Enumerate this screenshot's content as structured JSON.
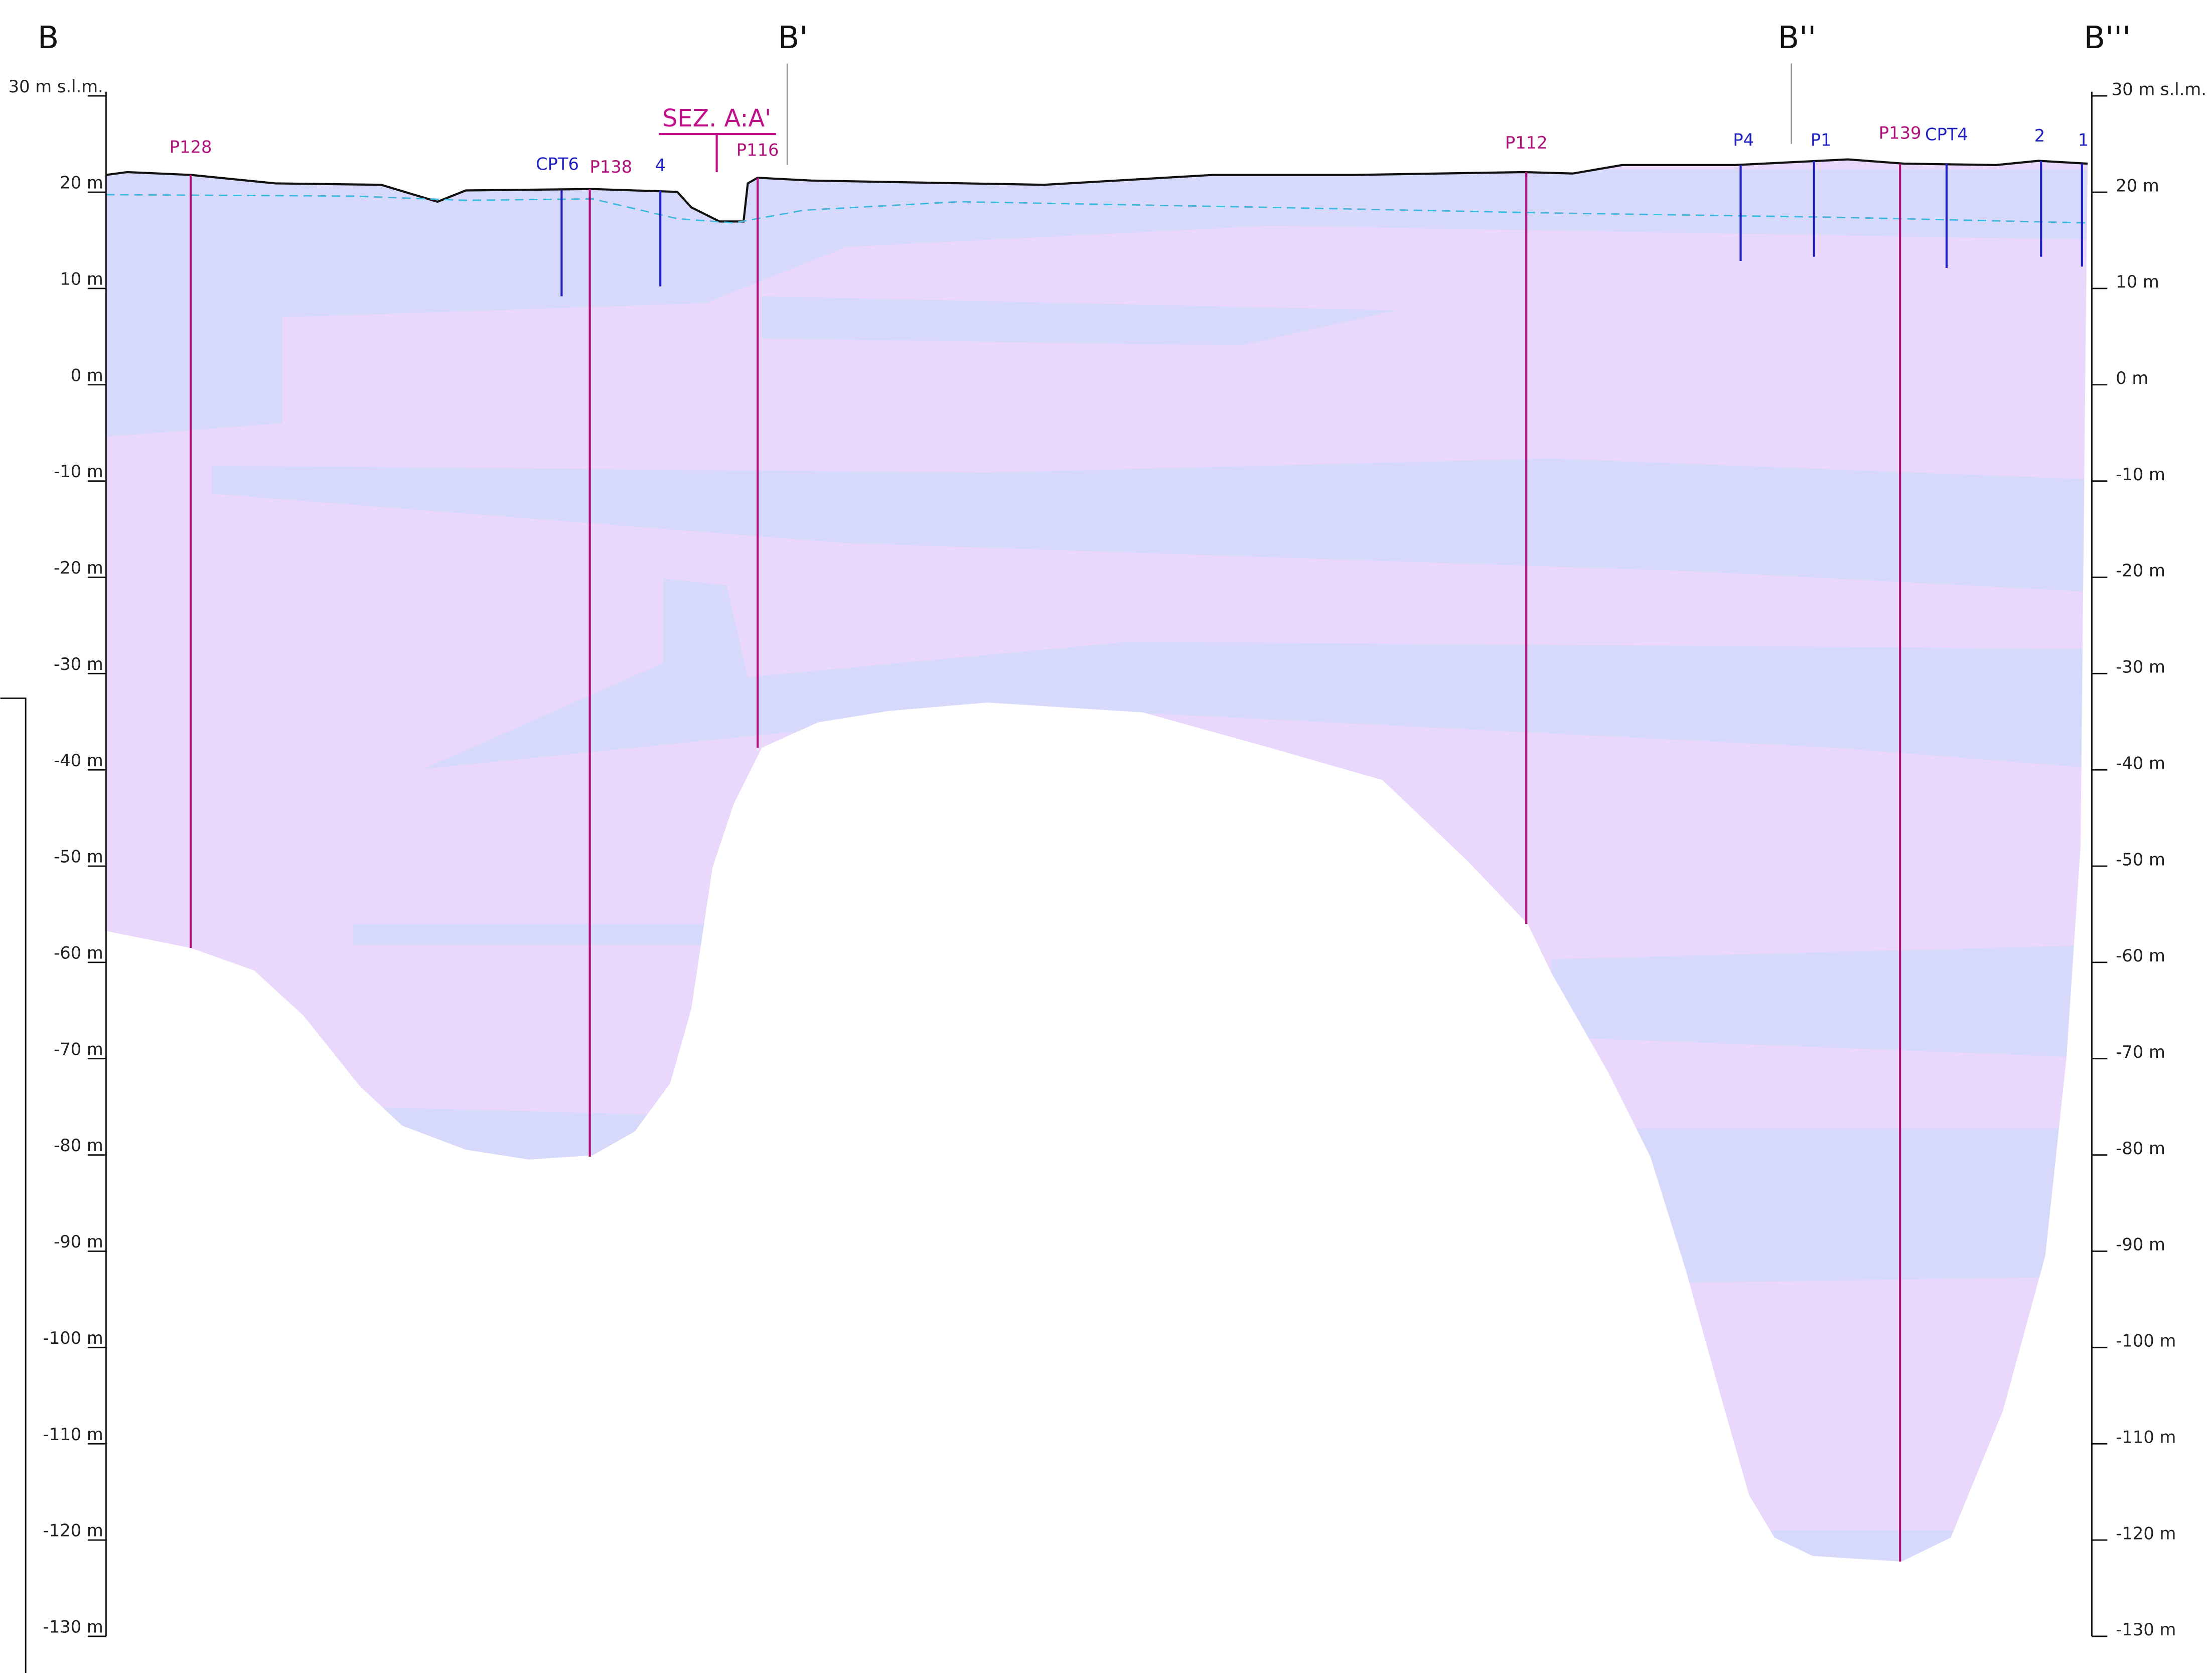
{
  "sections": [
    "B",
    "B'",
    "B''",
    "B'''"
  ],
  "annotation": "SEZ. A:A'",
  "left_axis": [
    "30 m s.l.m.",
    "20 m",
    "10 m",
    "0 m",
    "-10 m",
    "-20 m",
    "-30 m",
    "-40 m",
    "-50 m",
    "-60 m",
    "-70 m",
    "-80 m",
    "-90 m",
    "-100 m",
    "-110 m",
    "-120 m",
    "-130 m"
  ],
  "right_axis": [
    "30 m s.l.m.",
    "20 m",
    "10 m",
    "0 m",
    "-10 m",
    "-20 m",
    "-30 m",
    "-40 m",
    "-50 m",
    "-60 m",
    "-70 m",
    "-80 m",
    "-90 m",
    "-100 m",
    "-110 m",
    "-120 m",
    "-130 m"
  ],
  "boreholes": [
    "P128",
    "CPT6",
    "P138",
    "4",
    "P116",
    "P112",
    "P4",
    "P1",
    "P139",
    "CPT4",
    "2",
    "1"
  ]
}
